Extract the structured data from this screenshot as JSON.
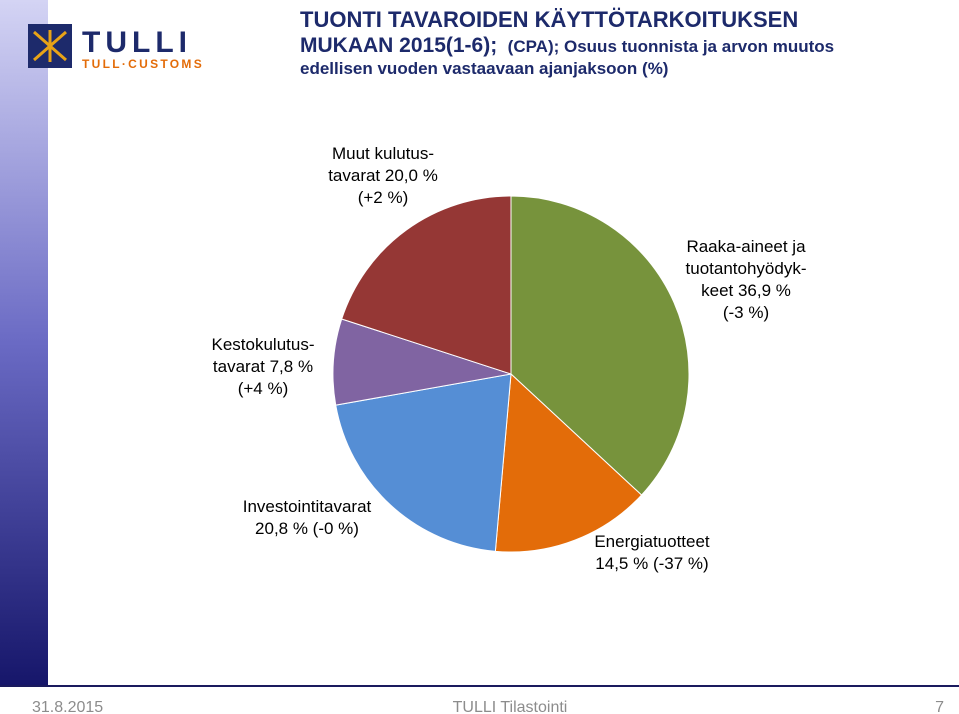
{
  "logo": {
    "name": "TULLI",
    "sub": "TULL·CUSTOMS"
  },
  "footer": {
    "date": "31.8.2015",
    "center": "TULLI Tilastointi",
    "page": "7"
  },
  "chart_data": {
    "type": "pie",
    "title": [
      "TUONTI TAVAROIDEN KÄYTTÖTARKOITUKSEN",
      "MUKAAN 2015(1-6);",
      "(CPA); Osuus tuonnista ja arvon muutos",
      "edellisen vuoden vastaavaan ajanjaksoon (%)"
    ],
    "categories": [
      [
        "Raaka-aineet ja",
        "tuotantohyödyk-",
        "keet 36,9 %",
        "(-3 %)"
      ],
      [
        "Energiatuotteet",
        "14,5 % (-37 %)"
      ],
      [
        "Investointitavarat",
        "20,8 % (-0 %)"
      ],
      [
        "Kestokulutus-",
        "tavarat 7,8 %",
        "(+4 %)"
      ],
      [
        "Muut kulutus-",
        "tavarat 20,0 %",
        "(+2 %)"
      ]
    ],
    "values": [
      36.9,
      14.5,
      20.8,
      7.8,
      20.0
    ],
    "colors": [
      "#77933c",
      "#e36c09",
      "#558ed5",
      "#8064a2",
      "#953735"
    ]
  }
}
